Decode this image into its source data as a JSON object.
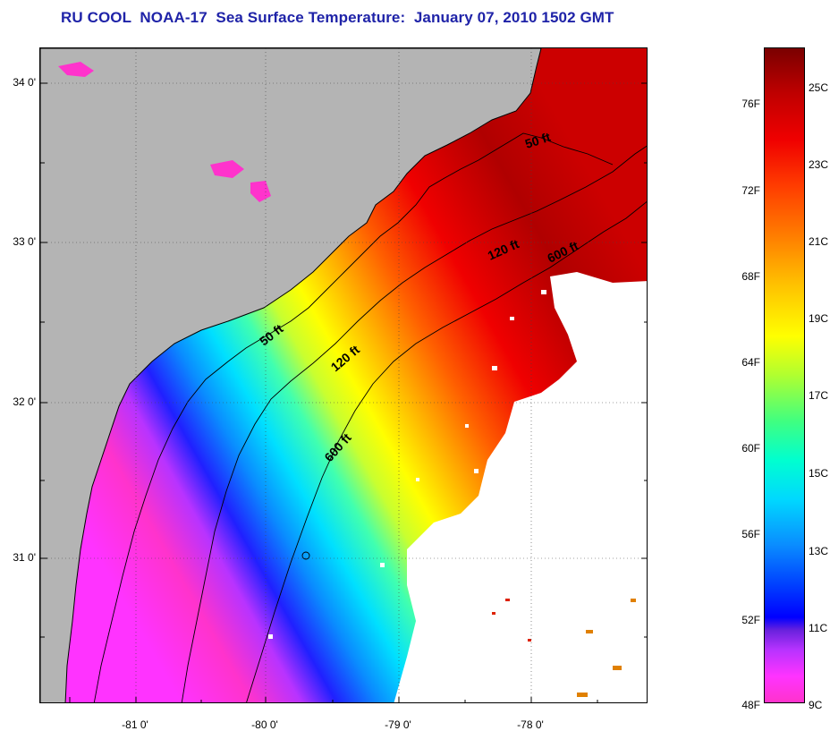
{
  "title": "RU COOL  NOAA-17  Sea Surface Temperature:  January 07, 2010 1502 GMT",
  "latitude_labels": [
    "34 0'",
    "33 0'",
    "32 0'",
    "31 0'"
  ],
  "longitude_labels": [
    "-81 0'",
    "-80 0'",
    "-79 0'",
    "-78 0'"
  ],
  "contour_labels": [
    "50 ft",
    "120 ft",
    "600 ft",
    "50 ft",
    "120 ft",
    "600 ft"
  ],
  "colorbar": {
    "fahrenheit_labels": [
      "76F",
      "72F",
      "68F",
      "64F",
      "60F",
      "56F",
      "52F",
      "48F"
    ],
    "celsius_labels": [
      "25C",
      "23C",
      "21C",
      "19C",
      "17C",
      "15C",
      "13C",
      "11C",
      "9C"
    ],
    "range_f": [
      48,
      79
    ],
    "range_c": [
      9,
      26
    ]
  },
  "colors": {
    "title": "#1f23a8",
    "land": "#b4b4b4",
    "no_data": "#ffffff",
    "coldest": "#ff33cc",
    "warmest": "#7a0000"
  }
}
